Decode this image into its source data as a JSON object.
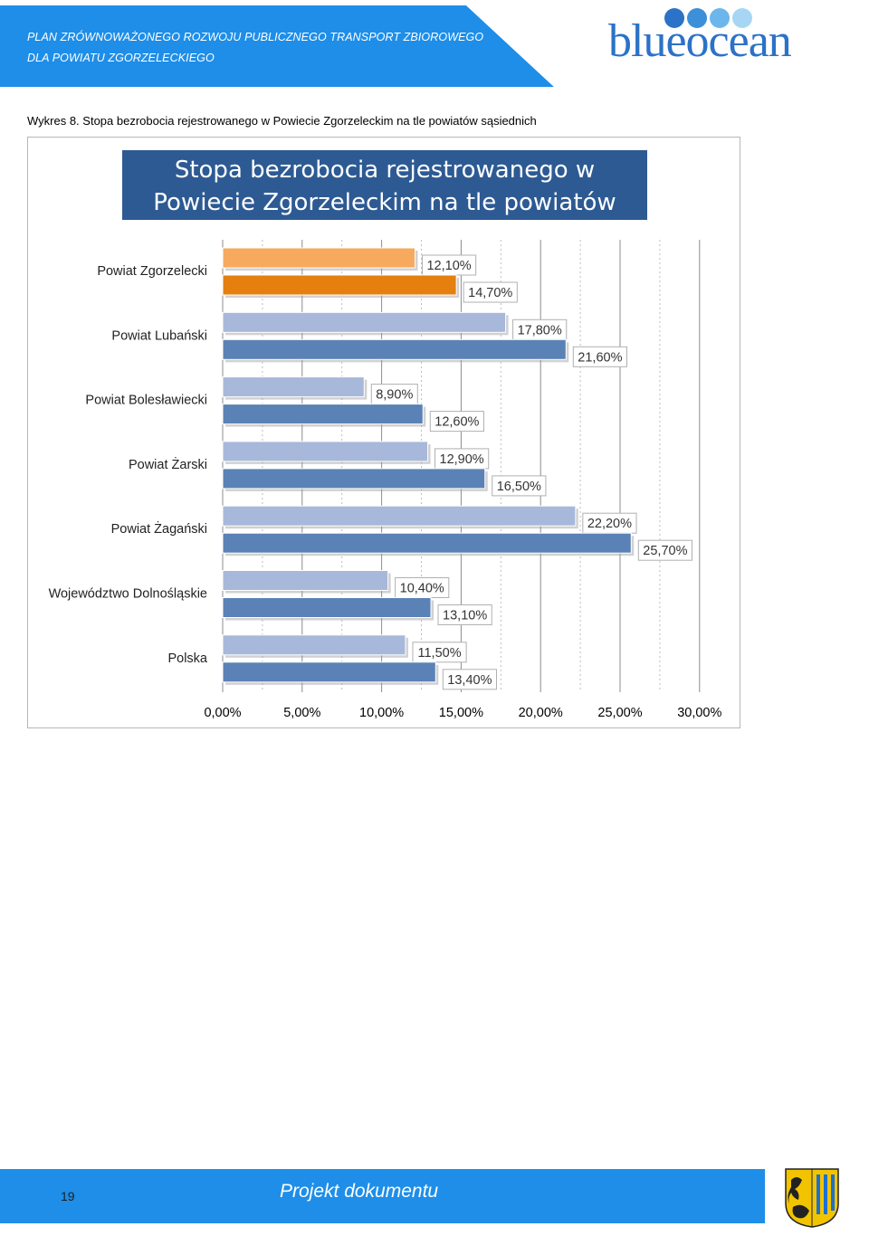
{
  "header": {
    "line1": "PLAN ZRÓWNOWAŻONEGO ROZWOJU PUBLICZNEGO TRANSPORT ZBIOROWEGO",
    "line2": "DLA POWIATU ZGORZELECKIEGO",
    "logo": "blueocean",
    "brand_color": "#1e8ee8"
  },
  "caption": "Wykres 8. Stopa bezrobocia rejestrowanego w Powiecie Zgorzeleckim na tle powiatów sąsiednich",
  "chart_data": {
    "type": "bar",
    "orientation": "horizontal",
    "title": "Stopa bezrobocia rejestrowanego w Powiecie Zgorzeleckim na tle powiatów sąsiednich",
    "categories": [
      "Powiat Zgorzelecki",
      "Powiat Lubański",
      "Powiat Bolesławiecki",
      "Powiat Żarski",
      "Powiat Żagański",
      "Województwo Dolnośląskie",
      "Polska"
    ],
    "series": [
      {
        "values": [
          12.1,
          17.8,
          8.9,
          12.9,
          22.2,
          10.4,
          11.5
        ],
        "labels": [
          "12,10%",
          "17,80%",
          "8,90%",
          "12,90%",
          "22,20%",
          "10,40%",
          "11,50%"
        ]
      },
      {
        "values": [
          14.7,
          21.6,
          12.6,
          16.5,
          25.7,
          13.1,
          13.4
        ],
        "labels": [
          "14,70%",
          "21,60%",
          "12,60%",
          "16,50%",
          "25,70%",
          "13,10%",
          "13,40%"
        ]
      }
    ],
    "colors": {
      "series1": "#a7b8da",
      "series2": "#5b82b6",
      "highlight_series1": "#f7a95d",
      "highlight_series2": "#e57f0e"
    },
    "highlight_category": "Powiat Zgorzelecki",
    "xlim": [
      0,
      30
    ],
    "xticks": [
      "0,00%",
      "5,00%",
      "10,00%",
      "15,00%",
      "20,00%",
      "25,00%",
      "30,00%"
    ],
    "grid": "vertical"
  },
  "footer": {
    "page_number": "19",
    "text": "Projekt dokumentu"
  }
}
